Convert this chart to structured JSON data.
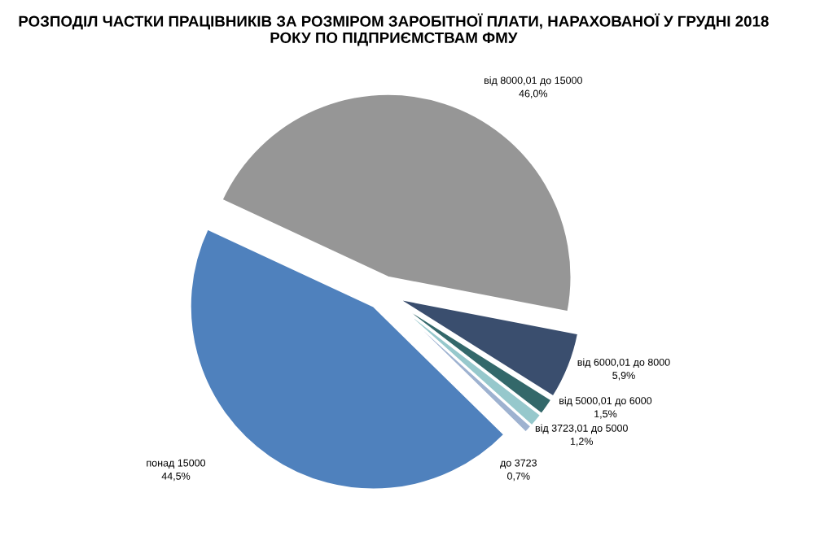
{
  "chart_data": {
    "type": "pie",
    "title": "РОЗПОДІЛ ЧАСТКИ ПРАЦІВНИКІВ ЗА РОЗМІРОМ ЗАРОБІТНОЇ ПЛАТИ, НАРАХОВАНОЇ У ГРУДНІ 2018 РОКУ ПО ПІДПРИЄМСТВАМ ФМУ",
    "categories": [
      "від 8000,01 до 15000",
      "від 6000,01 до 8000",
      "від 5000,01 до 6000",
      "від 3723,01 до 5000",
      "до 3723",
      "понад 15000"
    ],
    "values": [
      46.0,
      5.9,
      1.5,
      1.2,
      0.7,
      44.5
    ],
    "value_labels": [
      "46,0%",
      "5,9%",
      "1,5%",
      "1,2%",
      "0,7%",
      "44,5%"
    ],
    "colors": [
      "#969696",
      "#3a4e6e",
      "#33686a",
      "#96c8cc",
      "#9eb2d0",
      "#4f81bd"
    ],
    "legend": false
  }
}
